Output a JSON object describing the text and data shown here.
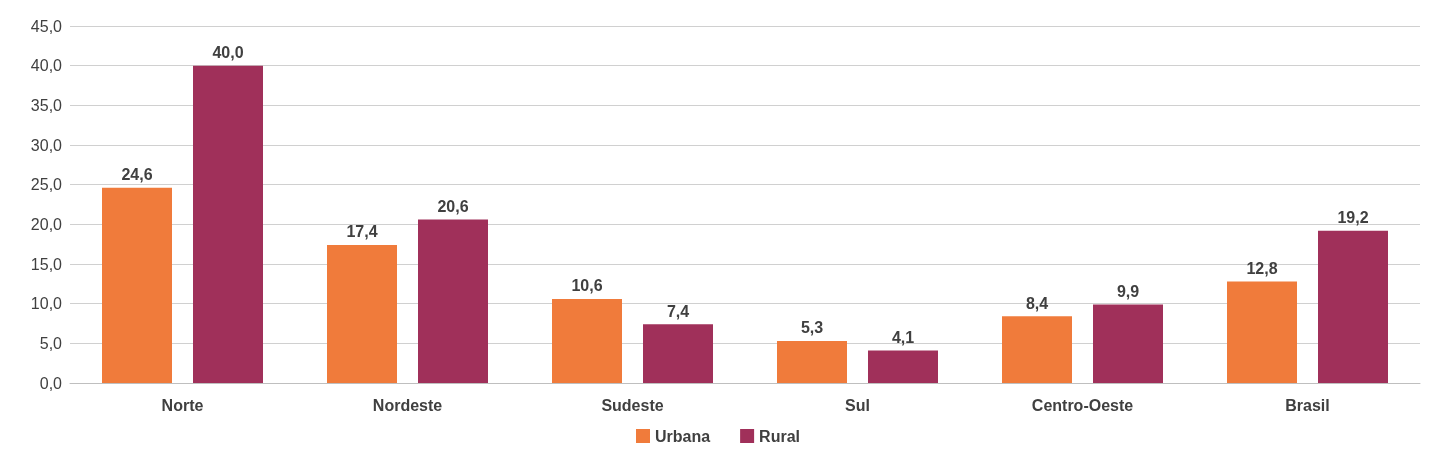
{
  "chart_data": {
    "type": "bar",
    "categories": [
      "Norte",
      "Nordeste",
      "Sudeste",
      "Sul",
      "Centro-Oeste",
      "Brasil"
    ],
    "series": [
      {
        "name": "Urbana",
        "color": "#f07b3b",
        "values": [
          24.6,
          17.4,
          10.6,
          5.3,
          8.4,
          12.8
        ],
        "value_labels": [
          "24,6",
          "17,4",
          "10,6",
          "5,3",
          "8,4",
          "12,8"
        ]
      },
      {
        "name": "Rural",
        "color": "#a0305a",
        "values": [
          40.0,
          20.6,
          7.4,
          4.1,
          9.9,
          19.2
        ],
        "value_labels": [
          "40,0",
          "20,6",
          "7,4",
          "4,1",
          "9,9",
          "19,2"
        ]
      }
    ],
    "ylim": [
      0,
      45
    ],
    "yticks": [
      {
        "value": 0,
        "label": "0,0"
      },
      {
        "value": 5,
        "label": "5,0"
      },
      {
        "value": 10,
        "label": "10,0"
      },
      {
        "value": 15,
        "label": "15,0"
      },
      {
        "value": 20,
        "label": "20,0"
      },
      {
        "value": 25,
        "label": "25,0"
      },
      {
        "value": 30,
        "label": "30,0"
      },
      {
        "value": 35,
        "label": "35,0"
      },
      {
        "value": 40,
        "label": "40,0"
      },
      {
        "value": 45,
        "label": "45,0"
      }
    ],
    "grid": "y",
    "legend": "bottom"
  }
}
